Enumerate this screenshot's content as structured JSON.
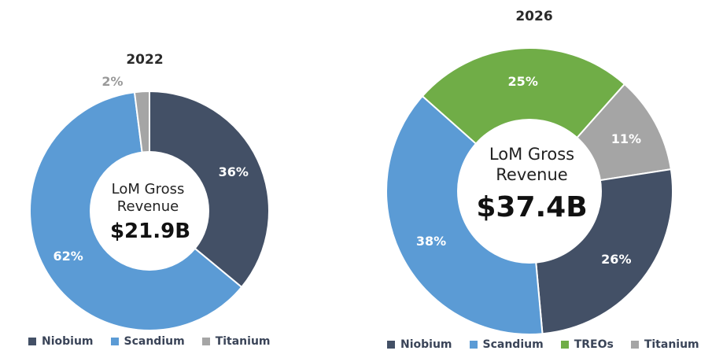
{
  "colors": {
    "Niobium": "#435066",
    "Scandium": "#5b9bd5",
    "TREOs": "#70ad47",
    "Titanium": "#a5a5a5"
  },
  "chart_data": [
    {
      "type": "pie",
      "title": "2022",
      "center_label_line1": "LoM Gross",
      "center_label_line2": "Revenue",
      "center_value": "$21.9B",
      "slices": [
        {
          "name": "Niobium",
          "value": 36,
          "label": "36%"
        },
        {
          "name": "Scandium",
          "value": 62,
          "label": "62%"
        },
        {
          "name": "Titanium",
          "value": 2,
          "label": "2%"
        }
      ],
      "legend": [
        "Niobium",
        "Scandium",
        "Titanium"
      ],
      "legend_position": "bottom"
    },
    {
      "type": "pie",
      "title": "2026",
      "center_label_line1": "LoM Gross",
      "center_label_line2": "Revenue",
      "center_value": "$37.4B",
      "slices": [
        {
          "name": "Titanium",
          "value": 11,
          "label": "11%"
        },
        {
          "name": "Niobium",
          "value": 26,
          "label": "26%"
        },
        {
          "name": "Scandium",
          "value": 38,
          "label": "38%"
        },
        {
          "name": "TREOs",
          "value": 25,
          "label": "25%"
        }
      ],
      "legend": [
        "Niobium",
        "Scandium",
        "TREOs",
        "Titanium"
      ],
      "legend_position": "bottom"
    }
  ]
}
